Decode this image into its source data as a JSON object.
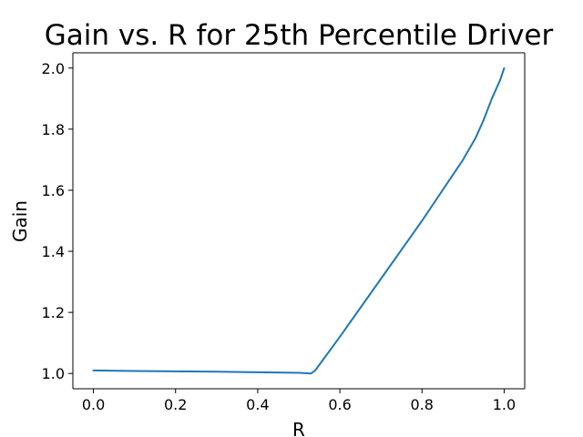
{
  "chart_data": {
    "type": "line",
    "title": "Gain vs. R for 25th Percentile Driver",
    "xlabel": "R",
    "ylabel": "Gain",
    "xlim": [
      -0.05,
      1.05
    ],
    "ylim": [
      0.95,
      2.05
    ],
    "xticks": [
      "0.0",
      "0.2",
      "0.4",
      "0.6",
      "0.8",
      "1.0"
    ],
    "yticks": [
      "1.0",
      "1.2",
      "1.4",
      "1.6",
      "1.8",
      "2.0"
    ],
    "grid": false,
    "series": [
      {
        "color": "#1f77b4",
        "x": [
          0.0,
          0.1,
          0.2,
          0.3,
          0.4,
          0.5,
          0.53,
          0.54,
          0.6,
          0.7,
          0.8,
          0.85,
          0.9,
          0.93,
          0.95,
          0.97,
          0.99,
          1.0
        ],
        "y": [
          1.01,
          1.008,
          1.007,
          1.006,
          1.004,
          1.002,
          1.0,
          1.01,
          1.12,
          1.31,
          1.5,
          1.6,
          1.7,
          1.77,
          1.83,
          1.9,
          1.96,
          2.0
        ]
      }
    ]
  }
}
